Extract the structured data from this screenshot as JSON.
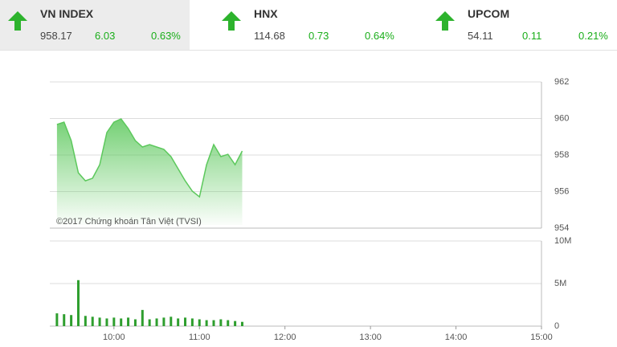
{
  "indices": [
    {
      "name": "VN INDEX",
      "value": "958.17",
      "change": "6.03",
      "percent": "0.63%"
    },
    {
      "name": "HNX",
      "value": "114.68",
      "change": "0.73",
      "percent": "0.64%"
    },
    {
      "name": "UPCOM",
      "value": "54.11",
      "change": "0.11",
      "percent": "0.21%"
    }
  ],
  "chart_data": [
    {
      "type": "area",
      "annotation": "©2017 Chứng khoán Tân Việt (TVSI)",
      "color": "#5cc85c",
      "x": [
        "09:20",
        "09:25",
        "09:30",
        "09:35",
        "09:40",
        "09:45",
        "09:50",
        "09:55",
        "10:00",
        "10:05",
        "10:10",
        "10:15",
        "10:20",
        "10:25",
        "10:30",
        "10:35",
        "10:40",
        "10:45",
        "10:50",
        "10:55",
        "11:00",
        "11:05",
        "11:10",
        "11:15",
        "11:20",
        "11:25",
        "11:30"
      ],
      "values": [
        959.67,
        959.8,
        958.79,
        957.03,
        956.59,
        956.73,
        957.47,
        959.23,
        959.8,
        959.98,
        959.45,
        958.79,
        958.44,
        958.57,
        958.44,
        958.31,
        957.91,
        957.25,
        956.59,
        956.02,
        955.71,
        957.47,
        958.57,
        957.91,
        958.04,
        957.47,
        958.22
      ],
      "xlim": [
        "09:15",
        "15:00"
      ],
      "ylim": [
        954,
        962
      ],
      "yticks": [
        954,
        956,
        958,
        960,
        962
      ],
      "grid": true
    },
    {
      "type": "bar",
      "color": "#2e9e2e",
      "x": [
        "09:20",
        "09:25",
        "09:30",
        "09:35",
        "09:40",
        "09:45",
        "09:50",
        "09:55",
        "10:00",
        "10:05",
        "10:10",
        "10:15",
        "10:20",
        "10:25",
        "10:30",
        "10:35",
        "10:40",
        "10:45",
        "10:50",
        "10:55",
        "11:00",
        "11:05",
        "11:10",
        "11:15",
        "11:20",
        "11:25",
        "11:30"
      ],
      "values": [
        1500000,
        1400000,
        1300000,
        5400000,
        1200000,
        1100000,
        1000000,
        900000,
        1000000,
        900000,
        1000000,
        800000,
        1900000,
        800000,
        900000,
        1000000,
        1100000,
        900000,
        1000000,
        900000,
        800000,
        700000,
        700000,
        800000,
        700000,
        600000,
        500000
      ],
      "xlim": [
        "09:15",
        "15:00"
      ],
      "xticks": [
        "10:00",
        "11:00",
        "12:00",
        "13:00",
        "14:00",
        "15:00"
      ],
      "ylim": [
        0,
        10000000
      ],
      "yticks": [
        0,
        {
          "value": 5000000,
          "label": "5M"
        },
        {
          "value": 10000000,
          "label": "10M"
        }
      ],
      "grid": true
    }
  ]
}
